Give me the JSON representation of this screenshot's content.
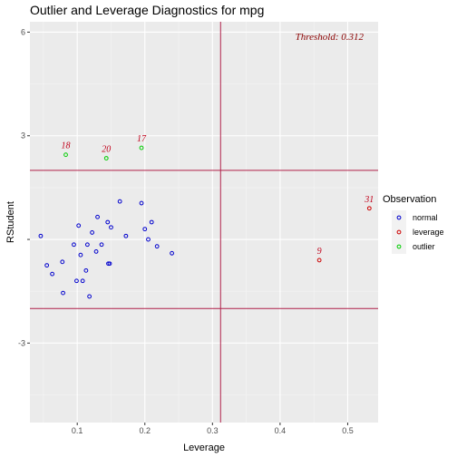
{
  "chart_data": {
    "type": "scatter",
    "title": "Outlier and Leverage Diagnostics for mpg",
    "xlabel": "Leverage",
    "ylabel": "RStudent",
    "xlim": [
      0.03,
      0.545
    ],
    "ylim": [
      -5.3,
      6.3
    ],
    "x_ticks": [
      {
        "value": 0.1,
        "label": "0.1"
      },
      {
        "value": 0.2,
        "label": "0.2"
      },
      {
        "value": 0.3,
        "label": "0.3"
      },
      {
        "value": 0.4,
        "label": "0.4"
      },
      {
        "value": 0.5,
        "label": "0.5"
      }
    ],
    "y_ticks": [
      {
        "value": -3,
        "label": "-3"
      },
      {
        "value": 0,
        "label": ""
      },
      {
        "value": 3,
        "label": "3"
      },
      {
        "value": 6,
        "label": "6"
      }
    ],
    "threshold_label": "Threshold: 0.312",
    "leverage_threshold": 0.312,
    "rstudent_thresholds": [
      -2,
      2
    ],
    "grid": true,
    "panel_background": "#ebebeb",
    "threshold_line_color": "#b0204a",
    "legend": {
      "title": "Observation",
      "position": "right",
      "entries": [
        {
          "label": "normal",
          "color": "#0000cd"
        },
        {
          "label": "leverage",
          "color": "#cd0000"
        },
        {
          "label": "outlier",
          "color": "#00cd00"
        }
      ]
    },
    "series": [
      {
        "name": "normal",
        "color": "#0000cd",
        "points": [
          {
            "x": 0.046,
            "y": 0.1
          },
          {
            "x": 0.055,
            "y": -0.75
          },
          {
            "x": 0.063,
            "y": -1.0
          },
          {
            "x": 0.078,
            "y": -0.65
          },
          {
            "x": 0.079,
            "y": -1.55
          },
          {
            "x": 0.095,
            "y": -0.15
          },
          {
            "x": 0.099,
            "y": -1.2
          },
          {
            "x": 0.102,
            "y": 0.4
          },
          {
            "x": 0.105,
            "y": -0.45
          },
          {
            "x": 0.108,
            "y": -1.2
          },
          {
            "x": 0.113,
            "y": -0.9
          },
          {
            "x": 0.115,
            "y": -0.15
          },
          {
            "x": 0.118,
            "y": -1.65
          },
          {
            "x": 0.122,
            "y": 0.2
          },
          {
            "x": 0.128,
            "y": -0.35
          },
          {
            "x": 0.13,
            "y": 0.65
          },
          {
            "x": 0.136,
            "y": -0.15
          },
          {
            "x": 0.145,
            "y": 0.5
          },
          {
            "x": 0.146,
            "y": -0.7
          },
          {
            "x": 0.148,
            "y": -0.7
          },
          {
            "x": 0.15,
            "y": 0.35
          },
          {
            "x": 0.163,
            "y": 1.1
          },
          {
            "x": 0.172,
            "y": 0.1
          },
          {
            "x": 0.195,
            "y": 1.05
          },
          {
            "x": 0.2,
            "y": 0.3
          },
          {
            "x": 0.205,
            "y": 0.0
          },
          {
            "x": 0.21,
            "y": 0.5
          },
          {
            "x": 0.218,
            "y": -0.2
          },
          {
            "x": 0.24,
            "y": -0.4
          }
        ]
      },
      {
        "name": "leverage",
        "color": "#cd0000",
        "points": [
          {
            "x": 0.458,
            "y": -0.6,
            "label": "9"
          },
          {
            "x": 0.532,
            "y": 0.9,
            "label": "31"
          }
        ]
      },
      {
        "name": "outlier",
        "color": "#00cd00",
        "points": [
          {
            "x": 0.083,
            "y": 2.45,
            "label": "18"
          },
          {
            "x": 0.143,
            "y": 2.35,
            "label": "20"
          },
          {
            "x": 0.195,
            "y": 2.65,
            "label": "17"
          }
        ]
      }
    ]
  }
}
